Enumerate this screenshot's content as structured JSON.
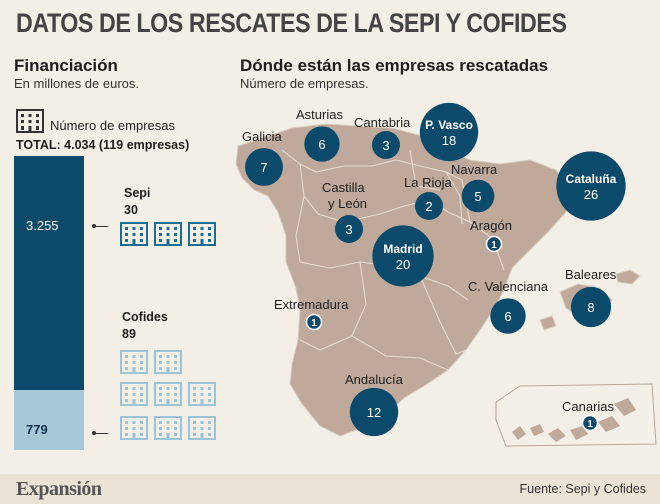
{
  "title": "DATOS DE LOS RESCATES DE LA SEPI Y COFIDES",
  "financing": {
    "title": "Financiación",
    "subtitle": "En millones de euros.",
    "legend_label": "Número de empresas",
    "total": "TOTAL: 4.034 (119 empresas)",
    "icon": "building-icon"
  },
  "map_section": {
    "title": "Dónde están las empresas rescatadas",
    "subtitle": "Número de empresas."
  },
  "colors": {
    "sepi": "#0b4a6b",
    "cofides": "#a7c8d8",
    "map_land": "#bfa99a",
    "bubble": "#0b4a6b",
    "icon_sepi": "#1b6e93",
    "icon_cofides": "#9cc3d6"
  },
  "chart_data": [
    {
      "type": "bar",
      "stacked": true,
      "categories": [
        "Financiación"
      ],
      "series": [
        {
          "name": "Sepi",
          "values": [
            3255
          ],
          "label": "3.255",
          "empresas": 30,
          "empresas_label": "30",
          "color": "#0b4a6b"
        },
        {
          "name": "Cofides",
          "values": [
            779
          ],
          "label": "779",
          "empresas": 89,
          "empresas_label": "89",
          "color": "#a7c8d8"
        }
      ],
      "total": 4034,
      "units": "millones de euros"
    },
    {
      "type": "scatter",
      "kind": "bubble map",
      "regions": [
        {
          "name": "Galicia",
          "value": 7
        },
        {
          "name": "Asturias",
          "value": 6
        },
        {
          "name": "Cantabria",
          "value": 3
        },
        {
          "name": "P. Vasco",
          "value": 18
        },
        {
          "name": "Navarra",
          "value": 5
        },
        {
          "name": "La Rioja",
          "value": 2
        },
        {
          "name": "Cataluña",
          "value": 26
        },
        {
          "name": "Castilla y León",
          "value": 3
        },
        {
          "name": "Aragón",
          "value": 1
        },
        {
          "name": "Madrid",
          "value": 20
        },
        {
          "name": "Baleares",
          "value": 8
        },
        {
          "name": "Extremadura",
          "value": 1
        },
        {
          "name": "C. Valenciana",
          "value": 6
        },
        {
          "name": "Andalucía",
          "value": 12
        },
        {
          "name": "Canarias",
          "value": 1
        }
      ]
    }
  ],
  "footer": {
    "brand": "Expansión",
    "source": "Fuente: Sepi y Cofides"
  }
}
